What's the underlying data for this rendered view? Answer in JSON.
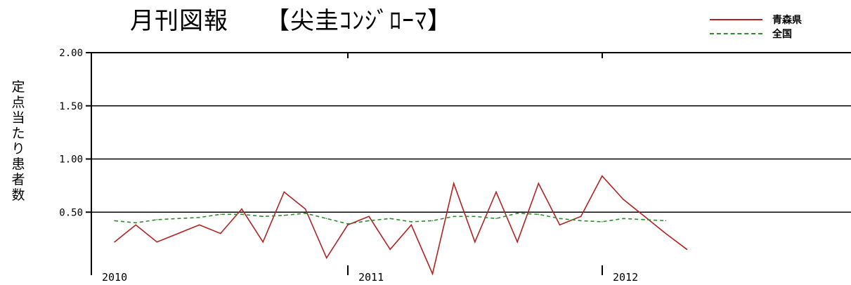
{
  "chart_data": {
    "type": "line",
    "title": "月刊図報　　【尖圭ｺﾝｼﾞﾛｰﾏ】",
    "ylabel": "定点当たり患者数",
    "ylim": [
      0,
      2.0
    ],
    "y_ticks": [
      "2.00",
      "1.50",
      "1.00",
      "0.50"
    ],
    "x_ticks": [
      "2010",
      "2011",
      "2012"
    ],
    "grid": true,
    "legend_position": "top-right",
    "series": [
      {
        "name": "青森県",
        "color": "#b22222",
        "style": "solid",
        "x": [
          "2010-01",
          "2010-02",
          "2010-03",
          "2010-04",
          "2010-05",
          "2010-06",
          "2010-07",
          "2010-08",
          "2010-09",
          "2010-10",
          "2010-11",
          "2010-12",
          "2011-01",
          "2011-02",
          "2011-03",
          "2011-04",
          "2011-05",
          "2011-06",
          "2011-07",
          "2011-08",
          "2011-09",
          "2011-10",
          "2011-11",
          "2011-12",
          "2012-01",
          "2012-02",
          "2012-03",
          "2012-04"
        ],
        "values": [
          0.22,
          0.38,
          0.22,
          0.3,
          0.38,
          0.3,
          0.53,
          0.22,
          0.69,
          0.53,
          0.07,
          0.38,
          0.46,
          0.15,
          0.38,
          -0.08,
          0.77,
          0.22,
          0.69,
          0.22,
          0.77,
          0.38,
          0.46,
          0.84,
          0.62,
          0.46,
          0.3,
          0.15
        ]
      },
      {
        "name": "全国",
        "color": "#2e8b2e",
        "style": "dashed",
        "x": [
          "2010-01",
          "2010-02",
          "2010-03",
          "2010-04",
          "2010-05",
          "2010-06",
          "2010-07",
          "2010-08",
          "2010-09",
          "2010-10",
          "2010-11",
          "2010-12",
          "2011-01",
          "2011-02",
          "2011-03",
          "2011-04",
          "2011-05",
          "2011-06",
          "2011-07",
          "2011-08",
          "2011-09",
          "2011-10",
          "2011-11",
          "2011-12",
          "2012-01",
          "2012-02",
          "2012-03"
        ],
        "values": [
          0.42,
          0.4,
          0.43,
          0.44,
          0.45,
          0.48,
          0.48,
          0.46,
          0.47,
          0.49,
          0.44,
          0.39,
          0.42,
          0.44,
          0.41,
          0.42,
          0.46,
          0.46,
          0.44,
          0.49,
          0.48,
          0.44,
          0.42,
          0.41,
          0.44,
          0.43,
          0.42
        ]
      }
    ]
  }
}
